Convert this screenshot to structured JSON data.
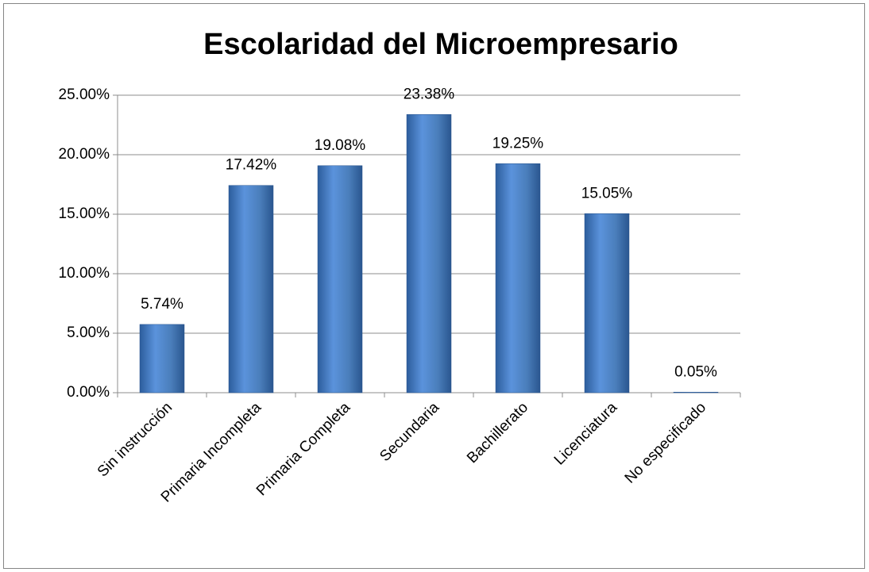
{
  "chart_data": {
    "type": "bar",
    "title": "Escolaridad del Microempresario",
    "categories": [
      "Sin instrucción",
      "Primaria Incompleta",
      "Primaria Completa",
      "Secundaria",
      "Bachillerato",
      "Licenciatura",
      "No especificado"
    ],
    "values": [
      5.74,
      17.42,
      19.08,
      23.38,
      19.25,
      15.05,
      0.05
    ],
    "value_labels": [
      "5.74%",
      "17.42%",
      "19.08%",
      "23.38%",
      "19.25%",
      "15.05%",
      "0.05%"
    ],
    "color": "#4a7ebb",
    "ylim": [
      0,
      25
    ],
    "yticks": [
      {
        "value": 0,
        "label": "0.00%"
      },
      {
        "value": 5,
        "label": "5.00%"
      },
      {
        "value": 10,
        "label": "10.00%"
      },
      {
        "value": 15,
        "label": "15.00%"
      },
      {
        "value": 20,
        "label": "20.00%"
      },
      {
        "value": 25,
        "label": "25.00%"
      }
    ],
    "grid": true
  }
}
